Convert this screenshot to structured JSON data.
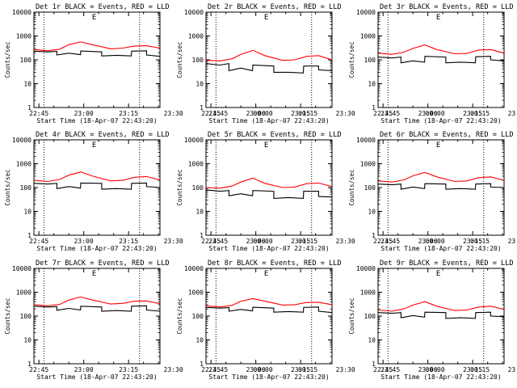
{
  "chart_data": [
    {
      "type": "line",
      "title": "Det 1r BLACK = Events, RED = LLD",
      "xlabel": "Start Time (18-Apr-07 22:43:20)",
      "ylabel": "Counts/sec",
      "x_tick_labels": [
        "22:45",
        "23:00",
        "23:15",
        "23:30",
        "23:45",
        "00:00",
        "00:15"
      ],
      "y_tick_labels": [
        "1",
        "10",
        "100",
        "1000",
        "10000"
      ],
      "ylim": [
        1,
        10000
      ],
      "y_scale": "log",
      "x_range_minutes": [
        -1.67,
        40.5
      ],
      "vertical_dotted_lines_at_minutes": [
        1.67,
        33.67
      ],
      "corner_marker": "E",
      "series": [
        {
          "color": "#000000",
          "x": [
            -1.67,
            3,
            6,
            6.01,
            10,
            13.9,
            14,
            21,
            21.01,
            26,
            30.9,
            31,
            36,
            36.01,
            40.5
          ],
          "y": [
            230,
            215,
            225,
            160,
            190,
            165,
            235,
            215,
            145,
            155,
            145,
            230,
            240,
            160,
            140
          ]
        },
        {
          "color": "#ff0000",
          "x": [
            -1.67,
            3,
            7,
            10,
            14,
            18,
            24,
            28,
            32,
            36,
            40.5
          ],
          "y": [
            270,
            240,
            280,
            430,
            560,
            430,
            290,
            310,
            380,
            390,
            310
          ]
        }
      ]
    },
    {
      "type": "line",
      "title": "Det 2r BLACK = Events, RED = LLD",
      "xlabel": "Start Time (18-Apr-07 22:43:20)",
      "ylabel": "Counts/sec",
      "x_tick_labels": [
        "22:45",
        "23:00",
        "23:15",
        "23:30",
        "23:45",
        "00:00",
        "00:15"
      ],
      "y_tick_labels": [
        "1",
        "10",
        "100",
        "1000",
        "10000"
      ],
      "ylim": [
        1,
        10000
      ],
      "y_scale": "log",
      "x_range_minutes": [
        -1.67,
        40.5
      ],
      "vertical_dotted_lines_at_minutes": [
        1.67,
        33.67
      ],
      "corner_marker": "E",
      "series": [
        {
          "color": "#000000",
          "x": [
            -1.67,
            3,
            6,
            6.01,
            10,
            13.9,
            14,
            21,
            21.01,
            26,
            30.9,
            31,
            36,
            36.01,
            40.5
          ],
          "y": [
            70,
            60,
            70,
            35,
            45,
            35,
            60,
            55,
            30,
            30,
            28,
            55,
            55,
            38,
            35
          ]
        },
        {
          "color": "#ff0000",
          "x": [
            -1.67,
            3,
            7,
            10,
            14,
            18,
            24,
            28,
            32,
            36,
            40.5
          ],
          "y": [
            95,
            90,
            110,
            170,
            250,
            150,
            95,
            100,
            140,
            150,
            100
          ]
        }
      ]
    },
    {
      "type": "line",
      "title": "Det 3r BLACK = Events, RED = LLD",
      "xlabel": "Start Time (18-Apr-07 22:43:20)",
      "ylabel": "Counts/sec",
      "x_tick_labels": [
        "22:45",
        "23:00",
        "23:15",
        "23:30",
        "23:45",
        "00:00",
        "00:15"
      ],
      "y_tick_labels": [
        "1",
        "10",
        "100",
        "1000",
        "10000"
      ],
      "ylim": [
        1,
        10000
      ],
      "y_scale": "log",
      "x_range_minutes": [
        -1.67,
        40.5
      ],
      "vertical_dotted_lines_at_minutes": [
        1.67,
        33.67
      ],
      "corner_marker": "E",
      "series": [
        {
          "color": "#000000",
          "x": [
            -1.67,
            3,
            6,
            6.01,
            10,
            13.9,
            14,
            21,
            21.01,
            26,
            30.9,
            31,
            36,
            36.01,
            40.5
          ],
          "y": [
            130,
            120,
            130,
            75,
            90,
            80,
            140,
            130,
            75,
            80,
            75,
            135,
            140,
            100,
            90
          ]
        },
        {
          "color": "#ff0000",
          "x": [
            -1.67,
            3,
            7,
            10,
            14,
            18,
            24,
            28,
            32,
            36,
            40.5
          ],
          "y": [
            190,
            170,
            210,
            300,
            420,
            270,
            180,
            185,
            260,
            270,
            190
          ]
        }
      ]
    },
    {
      "type": "line",
      "title": "Det 4r BLACK = Events, RED = LLD",
      "xlabel": "Start Time (18-Apr-07 22:43:20)",
      "ylabel": "Counts/sec",
      "x_tick_labels": [
        "22:45",
        "23:00",
        "23:15",
        "23:30",
        "23:45",
        "00:00",
        "00:15"
      ],
      "y_tick_labels": [
        "1",
        "10",
        "100",
        "1000",
        "10000"
      ],
      "ylim": [
        1,
        10000
      ],
      "y_scale": "log",
      "x_range_minutes": [
        -1.67,
        40.5
      ],
      "vertical_dotted_lines_at_minutes": [
        1.67,
        33.67
      ],
      "corner_marker": "E",
      "series": [
        {
          "color": "#000000",
          "x": [
            -1.67,
            3,
            6,
            6.01,
            10,
            13.9,
            14,
            21,
            21.01,
            26,
            30.9,
            31,
            36,
            36.01,
            40.5
          ],
          "y": [
            150,
            140,
            150,
            90,
            110,
            95,
            155,
            150,
            85,
            90,
            85,
            150,
            155,
            110,
            100
          ]
        },
        {
          "color": "#ff0000",
          "x": [
            -1.67,
            3,
            7,
            10,
            14,
            18,
            24,
            28,
            32,
            36,
            40.5
          ],
          "y": [
            200,
            180,
            220,
            330,
            450,
            300,
            190,
            200,
            270,
            290,
            210
          ]
        }
      ]
    },
    {
      "type": "line",
      "title": "Det 5r BLACK = Events, RED = LLD",
      "xlabel": "Start Time (18-Apr-07 22:43:20)",
      "ylabel": "Counts/sec",
      "x_tick_labels": [
        "22:45",
        "23:00",
        "23:15",
        "23:30",
        "23:45",
        "00:00",
        "00:15"
      ],
      "y_tick_labels": [
        "1",
        "10",
        "100",
        "1000",
        "10000"
      ],
      "ylim": [
        1,
        10000
      ],
      "y_scale": "log",
      "x_range_minutes": [
        -1.67,
        40.5
      ],
      "vertical_dotted_lines_at_minutes": [
        1.67,
        33.67
      ],
      "corner_marker": "E",
      "series": [
        {
          "color": "#000000",
          "x": [
            -1.67,
            3,
            6,
            6.01,
            10,
            13.9,
            14,
            21,
            21.01,
            26,
            30.9,
            31,
            36,
            36.01,
            40.5
          ],
          "y": [
            80,
            70,
            75,
            45,
            55,
            45,
            75,
            70,
            35,
            38,
            35,
            70,
            70,
            42,
            40
          ]
        },
        {
          "color": "#ff0000",
          "x": [
            -1.67,
            3,
            7,
            10,
            14,
            18,
            24,
            28,
            32,
            36,
            40.5
          ],
          "y": [
            100,
            95,
            115,
            170,
            250,
            150,
            100,
            105,
            145,
            155,
            110
          ]
        }
      ]
    },
    {
      "type": "line",
      "title": "Det 6r BLACK = Events, RED = LLD",
      "xlabel": "Start Time (18-Apr-07 22:43:20)",
      "ylabel": "Counts/sec",
      "x_tick_labels": [
        "22:45",
        "23:00",
        "23:15",
        "23:30",
        "23:45",
        "00:00",
        "00:15"
      ],
      "y_tick_labels": [
        "1",
        "10",
        "100",
        "1000",
        "10000"
      ],
      "ylim": [
        1,
        10000
      ],
      "y_scale": "log",
      "x_range_minutes": [
        -1.67,
        40.5
      ],
      "vertical_dotted_lines_at_minutes": [
        1.67,
        33.67
      ],
      "corner_marker": "E",
      "series": [
        {
          "color": "#000000",
          "x": [
            -1.67,
            3,
            6,
            6.01,
            10,
            13.9,
            14,
            21,
            21.01,
            26,
            30.9,
            31,
            36,
            36.01,
            40.5
          ],
          "y": [
            140,
            130,
            140,
            85,
            105,
            90,
            145,
            140,
            85,
            90,
            85,
            140,
            145,
            105,
            100
          ]
        },
        {
          "color": "#ff0000",
          "x": [
            -1.67,
            3,
            7,
            10,
            14,
            18,
            24,
            28,
            32,
            36,
            40.5
          ],
          "y": [
            190,
            170,
            210,
            310,
            430,
            280,
            180,
            190,
            260,
            280,
            200
          ]
        }
      ]
    },
    {
      "type": "line",
      "title": "Det 7r BLACK = Events, RED = LLD",
      "xlabel": "Start Time (18-Apr-07 22:43:20)",
      "ylabel": "Counts/sec",
      "x_tick_labels": [
        "22:45",
        "23:00",
        "23:15",
        "23:30",
        "23:45",
        "00:00",
        "00:15"
      ],
      "y_tick_labels": [
        "1",
        "10",
        "100",
        "1000",
        "10000"
      ],
      "ylim": [
        1,
        10000
      ],
      "y_scale": "log",
      "x_range_minutes": [
        -1.67,
        40.5
      ],
      "vertical_dotted_lines_at_minutes": [
        1.67,
        33.67
      ],
      "corner_marker": "E",
      "series": [
        {
          "color": "#000000",
          "x": [
            -1.67,
            3,
            6,
            6.01,
            10,
            13.9,
            14,
            21,
            21.01,
            26,
            30.9,
            31,
            36,
            36.01,
            40.5
          ],
          "y": [
            260,
            240,
            250,
            175,
            210,
            180,
            260,
            240,
            160,
            170,
            160,
            260,
            270,
            180,
            160
          ]
        },
        {
          "color": "#ff0000",
          "x": [
            -1.67,
            3,
            7,
            10,
            14,
            18,
            24,
            28,
            32,
            36,
            40.5
          ],
          "y": [
            300,
            270,
            310,
            470,
            630,
            470,
            320,
            340,
            420,
            430,
            330
          ]
        }
      ]
    },
    {
      "type": "line",
      "title": "Det 8r BLACK = Events, RED = LLD",
      "xlabel": "Start Time (18-Apr-07 22:43:20)",
      "ylabel": "Counts/sec",
      "x_tick_labels": [
        "22:45",
        "23:00",
        "23:15",
        "23:30",
        "23:45",
        "00:00",
        "00:15"
      ],
      "y_tick_labels": [
        "1",
        "10",
        "100",
        "1000",
        "10000"
      ],
      "ylim": [
        1,
        10000
      ],
      "y_scale": "log",
      "x_range_minutes": [
        -1.67,
        40.5
      ],
      "vertical_dotted_lines_at_minutes": [
        1.67,
        33.67
      ],
      "corner_marker": "E",
      "series": [
        {
          "color": "#000000",
          "x": [
            -1.67,
            3,
            6,
            6.01,
            10,
            13.9,
            14,
            21,
            21.01,
            26,
            30.9,
            31,
            36,
            36.01,
            40.5
          ],
          "y": [
            230,
            215,
            225,
            160,
            190,
            165,
            235,
            215,
            145,
            155,
            145,
            230,
            240,
            160,
            140
          ]
        },
        {
          "color": "#ff0000",
          "x": [
            -1.67,
            3,
            7,
            10,
            14,
            18,
            24,
            28,
            32,
            36,
            40.5
          ],
          "y": [
            270,
            240,
            280,
            420,
            540,
            420,
            290,
            300,
            370,
            380,
            300
          ]
        }
      ]
    },
    {
      "type": "line",
      "title": "Det 9r BLACK = Events, RED = LLD",
      "xlabel": "Start Time (18-Apr-07 22:43:20)",
      "ylabel": "Counts/sec",
      "x_tick_labels": [
        "22:45",
        "23:00",
        "23:15",
        "23:30",
        "23:45",
        "00:00",
        "00:15"
      ],
      "y_tick_labels": [
        "1",
        "10",
        "100",
        "1000",
        "10000"
      ],
      "ylim": [
        1,
        10000
      ],
      "y_scale": "log",
      "x_range_minutes": [
        -1.67,
        40.5
      ],
      "vertical_dotted_lines_at_minutes": [
        1.67,
        33.67
      ],
      "corner_marker": "E",
      "series": [
        {
          "color": "#000000",
          "x": [
            -1.67,
            3,
            6,
            6.01,
            10,
            13.9,
            14,
            21,
            21.01,
            26,
            30.9,
            31,
            36,
            36.01,
            40.5
          ],
          "y": [
            140,
            130,
            140,
            85,
            105,
            90,
            145,
            140,
            80,
            85,
            80,
            140,
            145,
            100,
            95
          ]
        },
        {
          "color": "#ff0000",
          "x": [
            -1.67,
            3,
            7,
            10,
            14,
            18,
            24,
            28,
            32,
            36,
            40.5
          ],
          "y": [
            180,
            160,
            200,
            290,
            400,
            260,
            170,
            180,
            240,
            260,
            190
          ]
        }
      ]
    }
  ]
}
